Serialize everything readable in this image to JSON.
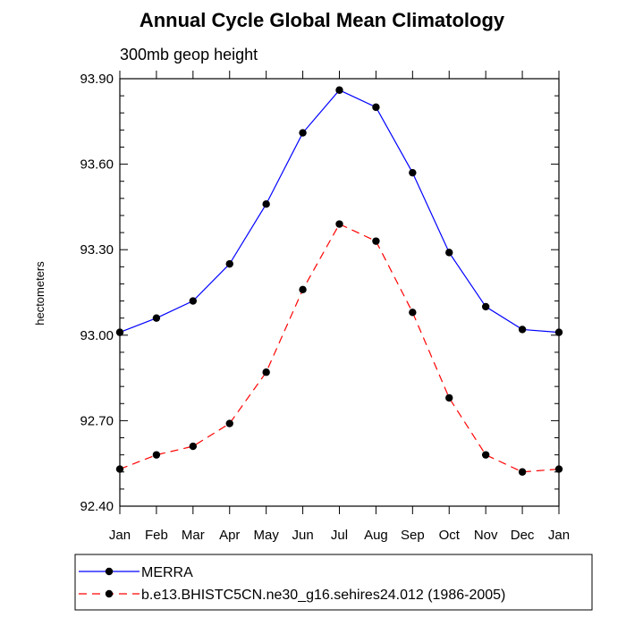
{
  "chart_data": {
    "type": "line",
    "title": "Annual Cycle Global Mean Climatology",
    "subtitle": "300mb geop height",
    "xlabel": "",
    "ylabel": "hectometers",
    "categories": [
      "Jan",
      "Feb",
      "Mar",
      "Apr",
      "May",
      "Jun",
      "Jul",
      "Aug",
      "Sep",
      "Oct",
      "Nov",
      "Dec",
      "Jan"
    ],
    "ylim": [
      92.4,
      93.9
    ],
    "yticks": [
      92.4,
      92.7,
      93.0,
      93.3,
      93.6,
      93.9
    ],
    "ytick_labels": [
      "92.40",
      "92.70",
      "93.00",
      "93.30",
      "93.60",
      "93.90"
    ],
    "grid": false,
    "legend_position": "bottom",
    "series": [
      {
        "name": "MERRA",
        "color": "#0000ff",
        "line_style": "solid",
        "marker": "filled-circle",
        "values": [
          93.01,
          93.06,
          93.12,
          93.25,
          93.46,
          93.71,
          93.86,
          93.8,
          93.57,
          93.29,
          93.1,
          93.02,
          93.01
        ]
      },
      {
        "name": "b.e13.BHISTC5CN.ne30_g16.sehires24.012 (1986-2005)",
        "color": "#ff0000",
        "line_style": "dashed",
        "marker": "filled-circle",
        "values": [
          92.53,
          92.58,
          92.61,
          92.69,
          92.87,
          93.16,
          93.39,
          93.33,
          93.08,
          92.78,
          92.58,
          92.52,
          92.53
        ]
      }
    ]
  }
}
